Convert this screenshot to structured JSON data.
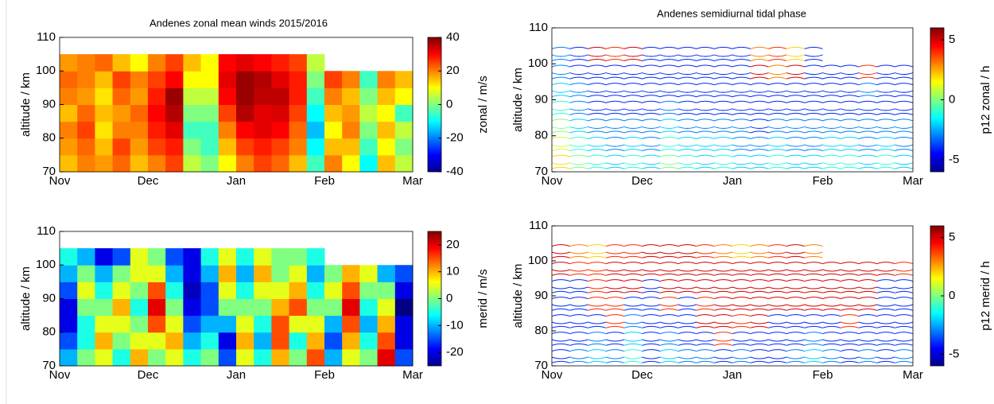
{
  "chart_data": [
    {
      "type": "heatmap",
      "title": "Andenes zonal mean winds 2015/2016",
      "ylabel": "altitude / km",
      "colorbar_label": "zonal / m/s",
      "categories": [
        "Nov",
        "Dec",
        "Jan",
        "Feb",
        "Mar"
      ],
      "y": [
        72.5,
        77.5,
        82.5,
        87.5,
        92.5,
        97.5,
        102.5
      ],
      "z": [
        [
          15,
          20,
          18,
          22,
          15,
          20,
          25,
          5,
          0,
          10,
          20,
          25,
          22,
          15,
          -5,
          20,
          10,
          -10,
          15,
          5
        ],
        [
          18,
          22,
          15,
          25,
          18,
          25,
          28,
          0,
          -5,
          15,
          25,
          28,
          25,
          20,
          -10,
          15,
          15,
          -5,
          10,
          0
        ],
        [
          20,
          25,
          12,
          20,
          20,
          28,
          32,
          -5,
          -5,
          20,
          30,
          32,
          30,
          22,
          -15,
          10,
          20,
          0,
          15,
          5
        ],
        [
          15,
          22,
          15,
          18,
          22,
          30,
          36,
          0,
          0,
          25,
          36,
          32,
          33,
          25,
          -10,
          15,
          18,
          5,
          10,
          -5
        ],
        [
          20,
          18,
          12,
          22,
          18,
          28,
          38,
          5,
          5,
          30,
          38,
          35,
          35,
          28,
          -5,
          20,
          15,
          0,
          15,
          10
        ],
        [
          22,
          20,
          15,
          25,
          20,
          25,
          30,
          10,
          10,
          32,
          38,
          36,
          32,
          28,
          0,
          25,
          20,
          -5,
          20,
          15
        ],
        [
          18,
          20,
          22,
          15,
          10,
          20,
          25,
          15,
          10,
          30,
          32,
          30,
          28,
          25,
          5,
          null,
          null,
          null,
          null,
          null
        ]
      ],
      "ylim": [
        70,
        110
      ],
      "yticks": [
        70,
        80,
        90,
        100,
        110
      ],
      "clim": [
        -40,
        40
      ],
      "cticks": [
        -40,
        -20,
        0,
        20,
        40
      ],
      "colormap": "jet"
    },
    {
      "type": "contour",
      "title": "Andenes semidiurnal tidal phase",
      "ylabel": "altitude / km",
      "colorbar_label": "p12 zonal / h",
      "categories": [
        "Nov",
        "Dec",
        "Jan",
        "Feb",
        "Mar"
      ],
      "y": [
        72.5,
        77.5,
        82.5,
        87.5,
        92.5,
        97.5,
        102.5
      ],
      "z": [
        [
          2,
          0,
          -1,
          -2,
          -1,
          -2,
          0,
          -1,
          -2,
          -1,
          -2,
          -2,
          -1,
          -2,
          -2,
          -1,
          -1,
          -2,
          -1,
          -2
        ],
        [
          1,
          -1,
          -2,
          -3,
          -2,
          -3,
          -1,
          -2,
          -2,
          -2,
          -3,
          -3,
          -2,
          -3,
          -3,
          -2,
          -2,
          -3,
          -2,
          -3
        ],
        [
          0,
          -2,
          -3,
          -3,
          -3,
          -3,
          -2,
          -3,
          -3,
          -3,
          -3,
          -4,
          -3,
          -3,
          -3,
          -3,
          -3,
          -3,
          -3,
          -3
        ],
        [
          -1,
          -3,
          -4,
          -4,
          -4,
          -4,
          -3,
          -4,
          -4,
          -4,
          -4,
          -4,
          -4,
          -4,
          -4,
          -4,
          -4,
          -4,
          -4,
          -4
        ],
        [
          -2,
          -3,
          -4,
          -4,
          -4,
          -4,
          -4,
          -4,
          -4,
          -4,
          -4,
          -4,
          -4,
          -4,
          -4,
          -4,
          -4,
          -3,
          -4,
          -4
        ],
        [
          -3,
          -4,
          -4,
          -4,
          -4,
          -4,
          -4,
          -4,
          -4,
          -4,
          -4,
          5,
          3,
          5,
          -4,
          -4,
          -4,
          4,
          -4,
          -4
        ],
        [
          -3,
          -4,
          5,
          4,
          5,
          -4,
          -4,
          -4,
          -4,
          -4,
          -4,
          3,
          4,
          2,
          -4,
          null,
          null,
          null,
          null,
          null
        ]
      ],
      "ylim": [
        70,
        110
      ],
      "yticks": [
        70,
        80,
        90,
        100,
        110
      ],
      "clim": [
        -6,
        6
      ],
      "cticks": [
        -5,
        0,
        5
      ],
      "colormap": "jet"
    },
    {
      "type": "heatmap",
      "ylabel": "altitude / km",
      "colorbar_label": "merid / m/s",
      "categories": [
        "Nov",
        "Dec",
        "Jan",
        "Feb",
        "Mar"
      ],
      "y": [
        72.5,
        77.5,
        82.5,
        87.5,
        92.5,
        97.5,
        102.5
      ],
      "z": [
        [
          -10,
          0,
          5,
          -5,
          10,
          0,
          5,
          -5,
          0,
          -15,
          5,
          -5,
          10,
          0,
          15,
          -10,
          5,
          0,
          20,
          -15
        ],
        [
          -15,
          -5,
          10,
          0,
          5,
          5,
          10,
          -10,
          -5,
          -20,
          10,
          -10,
          15,
          -5,
          10,
          -15,
          10,
          -5,
          15,
          -20
        ],
        [
          -20,
          -5,
          5,
          5,
          0,
          15,
          5,
          -15,
          -10,
          -10,
          5,
          -5,
          15,
          5,
          5,
          -10,
          15,
          -10,
          10,
          -20
        ],
        [
          -20,
          0,
          0,
          10,
          -5,
          20,
          0,
          -20,
          -15,
          0,
          0,
          0,
          10,
          15,
          0,
          0,
          20,
          -5,
          5,
          -25
        ],
        [
          -15,
          5,
          -5,
          5,
          0,
          15,
          -5,
          -22,
          -15,
          5,
          -5,
          5,
          5,
          10,
          -5,
          5,
          15,
          0,
          0,
          -20
        ],
        [
          -10,
          0,
          -10,
          0,
          5,
          5,
          -10,
          -20,
          -10,
          10,
          -10,
          10,
          0,
          5,
          -10,
          0,
          10,
          5,
          -10,
          -15
        ],
        [
          -5,
          -10,
          -20,
          -15,
          5,
          0,
          -15,
          -20,
          -5,
          5,
          -5,
          5,
          0,
          0,
          -5,
          null,
          null,
          null,
          null,
          null
        ]
      ],
      "ylim": [
        70,
        110
      ],
      "yticks": [
        70,
        80,
        90,
        100,
        110
      ],
      "clim": [
        -25,
        25
      ],
      "cticks": [
        -20,
        -10,
        0,
        10,
        20
      ],
      "colormap": "jet"
    },
    {
      "type": "contour",
      "ylabel": "altitude / km",
      "colorbar_label": "p12 merid / h",
      "categories": [
        "Nov",
        "Dec",
        "Jan",
        "Feb",
        "Mar"
      ],
      "y": [
        72.5,
        77.5,
        82.5,
        87.5,
        92.5,
        97.5,
        102.5
      ],
      "z": [
        [
          -4,
          -3,
          -2,
          -3,
          -1,
          -4,
          -2,
          -3,
          -3,
          -4,
          -3,
          -4,
          -4,
          -3,
          -2,
          -3,
          -4,
          -3,
          -4,
          -3
        ],
        [
          -4,
          -4,
          -3,
          -4,
          -2,
          -4,
          -3,
          -4,
          -4,
          4,
          -4,
          -4,
          -4,
          -4,
          -3,
          -4,
          -4,
          -4,
          -4,
          -4
        ],
        [
          -4,
          -4,
          -4,
          4,
          -3,
          -4,
          -4,
          -4,
          5,
          5,
          4,
          5,
          -4,
          -4,
          -4,
          -4,
          4,
          -4,
          -4,
          -4
        ],
        [
          -4,
          -4,
          4,
          4,
          -4,
          -4,
          4,
          -4,
          4,
          5,
          5,
          5,
          5,
          5,
          5,
          5,
          5,
          5,
          -4,
          -4
        ],
        [
          -4,
          -4,
          4,
          5,
          5,
          -4,
          5,
          5,
          5,
          5,
          5,
          5,
          5,
          5,
          5,
          5,
          5,
          5,
          -4,
          -4
        ],
        [
          5,
          4,
          4,
          5,
          5,
          5,
          5,
          5,
          5,
          5,
          5,
          5,
          5,
          5,
          5,
          5,
          5,
          5,
          5,
          4
        ],
        [
          5,
          3,
          2,
          4,
          4,
          5,
          5,
          5,
          4,
          3,
          2,
          3,
          4,
          5,
          3,
          null,
          null,
          null,
          null,
          null
        ]
      ],
      "ylim": [
        70,
        110
      ],
      "yticks": [
        70,
        80,
        90,
        100,
        110
      ],
      "clim": [
        -6,
        6
      ],
      "cticks": [
        -5,
        0,
        5
      ],
      "colormap": "jet"
    }
  ]
}
